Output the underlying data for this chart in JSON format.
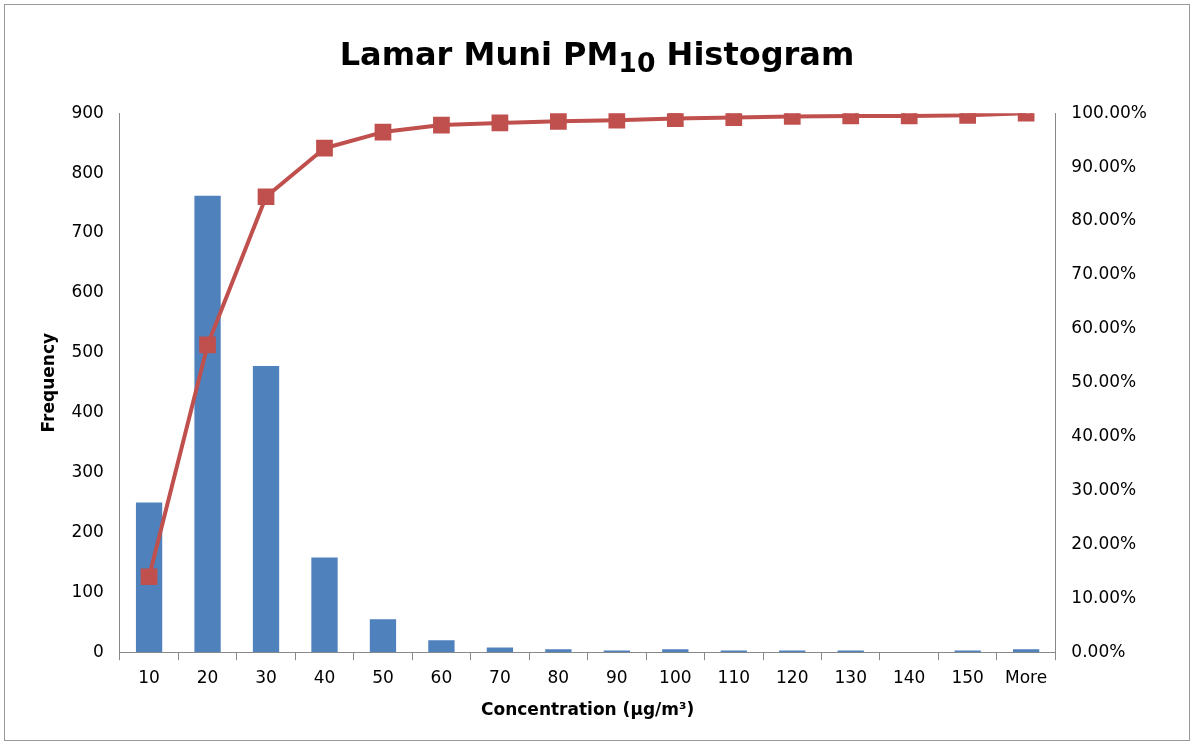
{
  "chart_data": {
    "type": "bar",
    "title": "Lamar Muni PM$_{10}$ Histogram",
    "xlabel": "Concentration (µg/m³)",
    "ylabel": "Frequency",
    "categories": [
      "10",
      "20",
      "30",
      "40",
      "50",
      "60",
      "70",
      "80",
      "90",
      "100",
      "110",
      "120",
      "130",
      "140",
      "150",
      "More"
    ],
    "series": [
      {
        "color": "#4f81bd",
        "values": [
          250,
          762,
          478,
          158,
          55,
          20,
          8,
          5,
          3,
          5,
          3,
          3,
          3,
          0,
          3,
          5
        ]
      },
      {
        "type": "line",
        "axis": "y2",
        "color": "#c0504d",
        "marker": "square",
        "values": [
          14,
          57,
          84.5,
          93.5,
          96.5,
          97.8,
          98.2,
          98.5,
          98.7,
          99,
          99.2,
          99.4,
          99.5,
          99.5,
          99.6,
          100
        ]
      }
    ],
    "ylim": [
      0,
      900
    ],
    "yticks": [
      0,
      100,
      200,
      300,
      400,
      500,
      600,
      700,
      800,
      900
    ],
    "y2lim": [
      0,
      100
    ],
    "y2ticks": [
      {
        "value": 0,
        "label": "0.00%"
      },
      {
        "value": 10,
        "label": "10.00%"
      },
      {
        "value": 20,
        "label": "20.00%"
      },
      {
        "value": 30,
        "label": "30.00%"
      },
      {
        "value": 40,
        "label": "40.00%"
      },
      {
        "value": 50,
        "label": "50.00%"
      },
      {
        "value": 60,
        "label": "60.00%"
      },
      {
        "value": 70,
        "label": "70.00%"
      },
      {
        "value": 80,
        "label": "80.00%"
      },
      {
        "value": 90,
        "label": "90.00%"
      },
      {
        "value": 100,
        "label": "100.00%"
      }
    ],
    "grid": false,
    "legend": false
  }
}
